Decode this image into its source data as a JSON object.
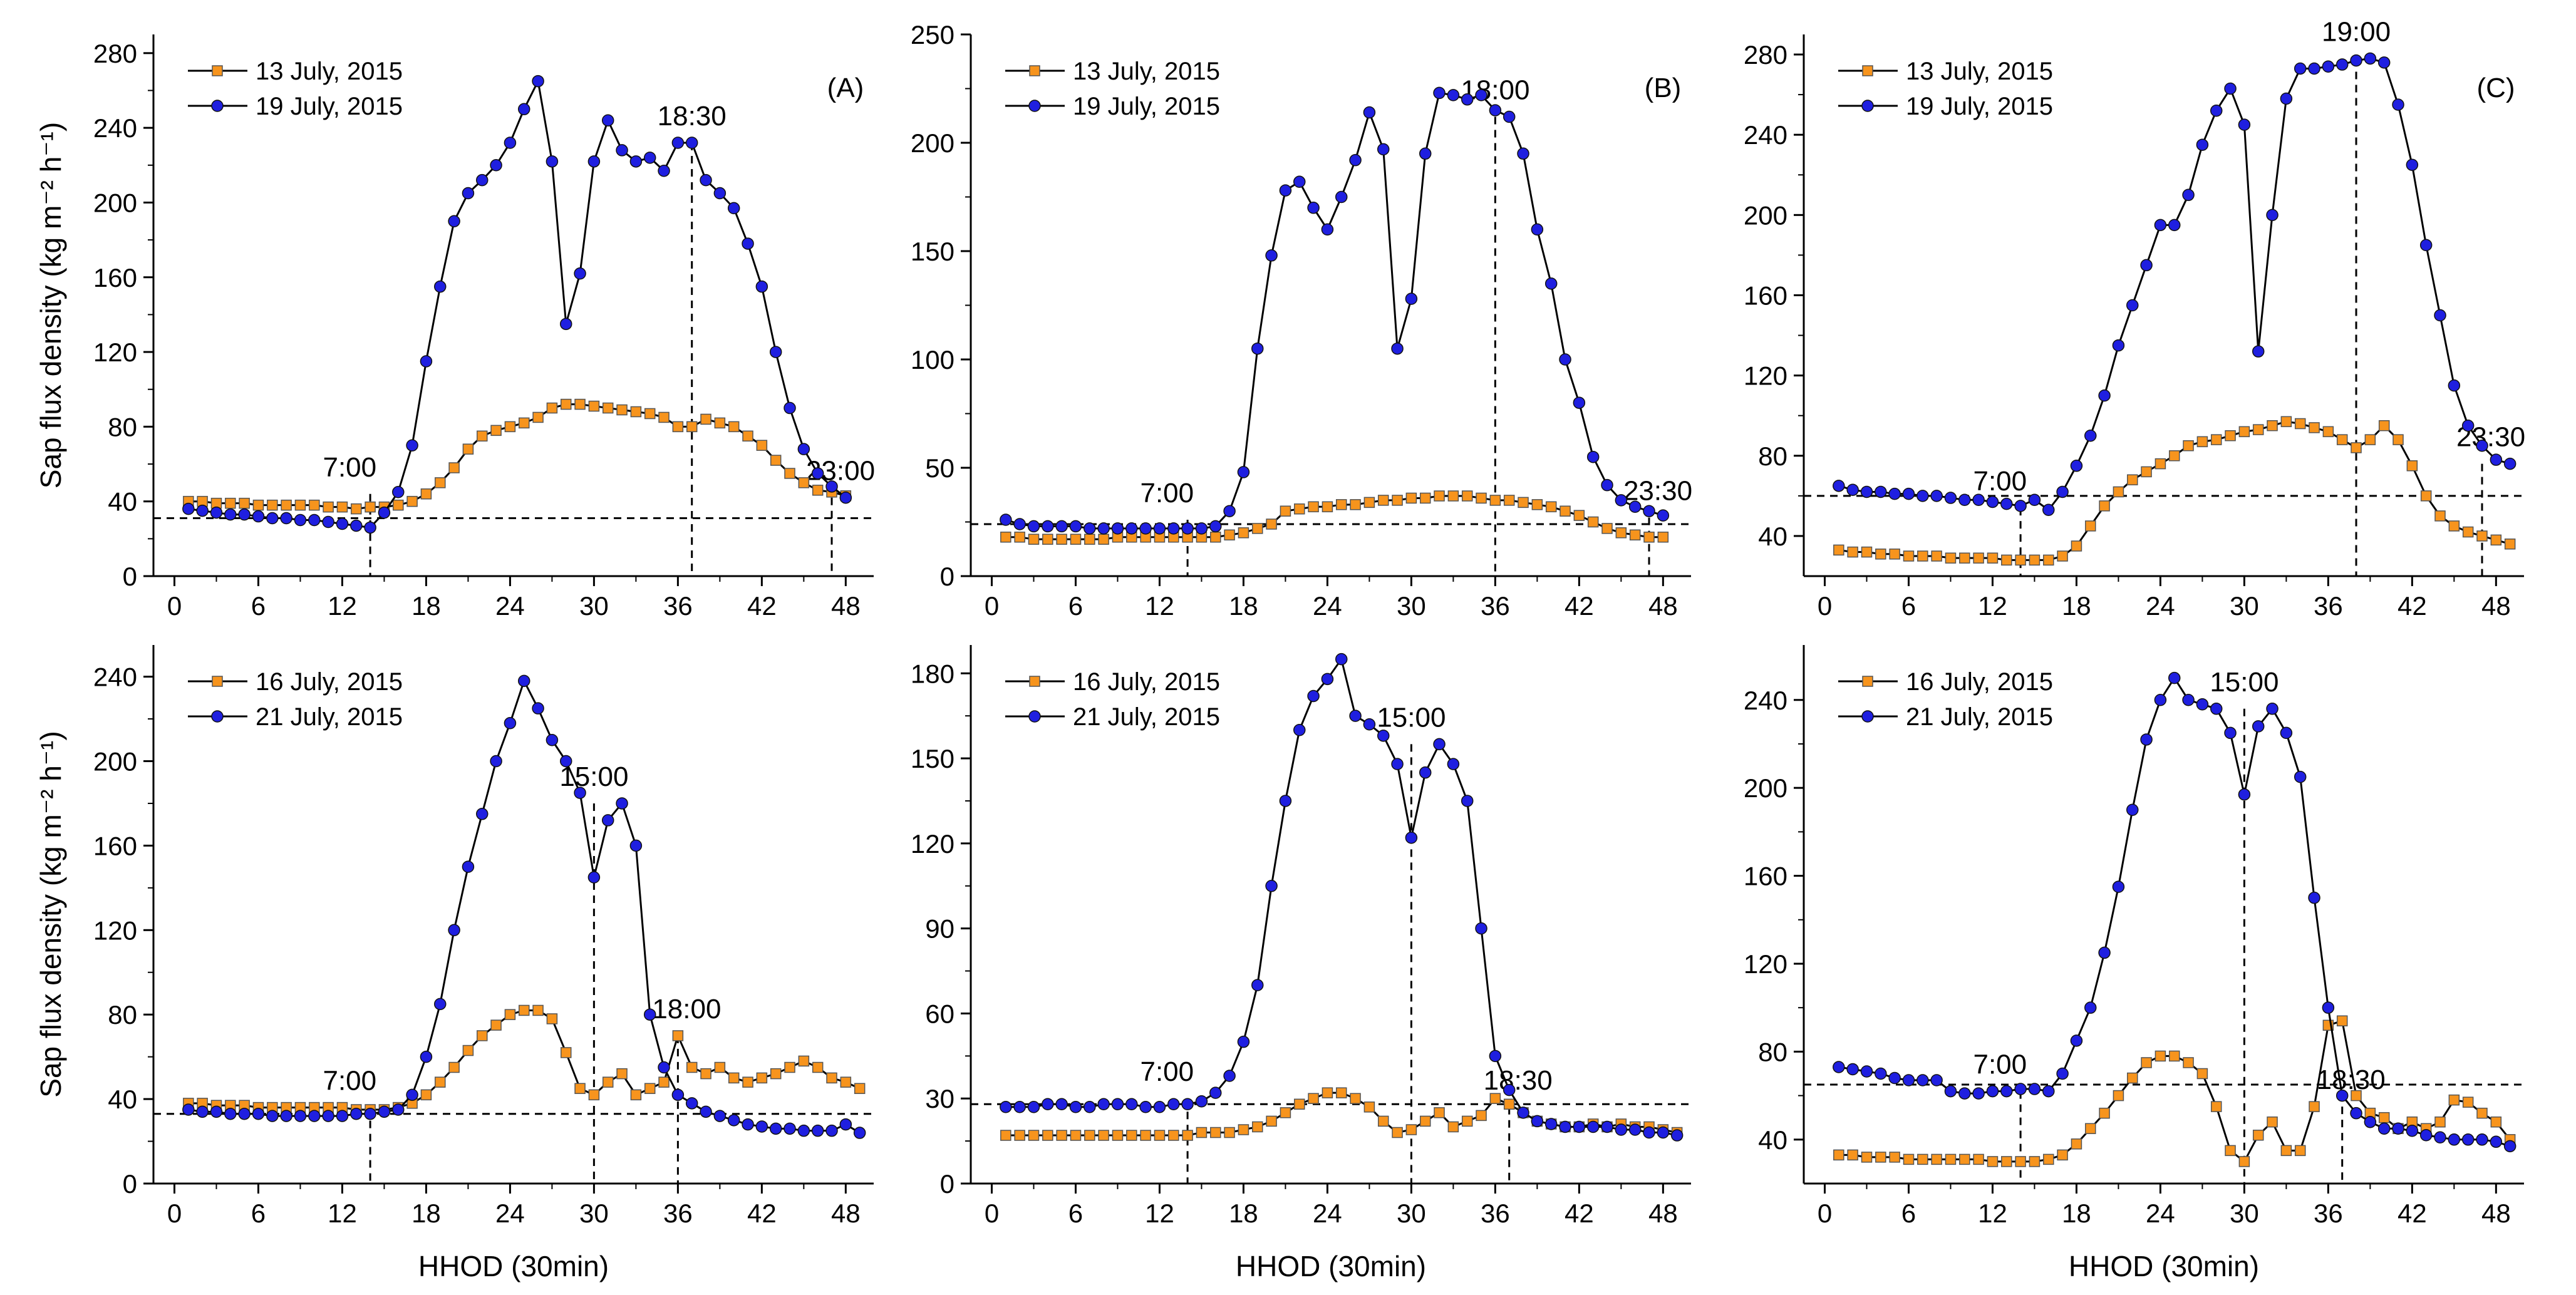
{
  "figure": {
    "ylabel": "Sap flux density (kg m⁻² h⁻¹)",
    "xlabel": "HHOD (30min)"
  },
  "colors": {
    "series1": "#f7941d",
    "series2": "#1f1fe0",
    "line": "#000000"
  },
  "chart_data": [
    {
      "type": "line",
      "panel": "A",
      "row": 0,
      "col": 0,
      "panel_label": "(A)",
      "xlim": [
        -1.5,
        50
      ],
      "ylim": [
        0,
        290
      ],
      "xticks": [
        0,
        6,
        12,
        18,
        24,
        30,
        36,
        42,
        48
      ],
      "yticks": [
        0,
        40,
        80,
        120,
        160,
        200,
        240,
        280
      ],
      "ylabel": "Sap flux density (kg m⁻² h⁻¹)",
      "xlabel": "",
      "hline": 31,
      "vlines": [
        {
          "x": 14,
          "top": 44,
          "label": "7:00"
        },
        {
          "x": 37,
          "top": 232,
          "label": "18:30"
        },
        {
          "x": 47,
          "top": 42,
          "label": "23:00"
        }
      ],
      "series": [
        {
          "name": "13 July, 2015",
          "marker": "square",
          "values": [
            40,
            40,
            39,
            39,
            39,
            38,
            38,
            38,
            38,
            38,
            37,
            37,
            36,
            37,
            37,
            38,
            40,
            44,
            50,
            58,
            68,
            75,
            78,
            80,
            82,
            85,
            90,
            92,
            92,
            91,
            90,
            89,
            88,
            87,
            85,
            80,
            80,
            84,
            82,
            80,
            75,
            70,
            62,
            55,
            50,
            46,
            45,
            43
          ]
        },
        {
          "name": "19 July, 2015",
          "marker": "circle",
          "values": [
            36,
            35,
            34,
            33,
            33,
            32,
            31,
            31,
            30,
            30,
            29,
            28,
            27,
            26,
            34,
            45,
            70,
            115,
            155,
            190,
            205,
            212,
            220,
            232,
            250,
            265,
            222,
            135,
            162,
            222,
            244,
            228,
            222,
            224,
            217,
            232,
            232,
            212,
            205,
            197,
            178,
            155,
            120,
            90,
            68,
            55,
            48,
            42
          ]
        }
      ]
    },
    {
      "type": "line",
      "panel": "B",
      "row": 0,
      "col": 1,
      "panel_label": "(B)",
      "xlim": [
        -1.5,
        50
      ],
      "ylim": [
        0,
        250
      ],
      "xticks": [
        0,
        6,
        12,
        18,
        24,
        30,
        36,
        42,
        48
      ],
      "yticks": [
        0,
        50,
        100,
        150,
        200,
        250
      ],
      "ylabel": "",
      "xlabel": "",
      "hline": 24,
      "vlines": [
        {
          "x": 14,
          "top": 26,
          "label": "7:00"
        },
        {
          "x": 36,
          "top": 212,
          "label": "18:00"
        },
        {
          "x": 47,
          "top": 27,
          "label": "23:30"
        }
      ],
      "series": [
        {
          "name": "13 July, 2015",
          "marker": "square",
          "values": [
            18,
            18,
            17,
            17,
            17,
            17,
            17,
            17,
            18,
            18,
            18,
            18,
            18,
            18,
            18,
            18,
            19,
            20,
            22,
            24,
            30,
            31,
            32,
            32,
            33,
            33,
            34,
            35,
            35,
            36,
            36,
            37,
            37,
            37,
            36,
            35,
            35,
            34,
            33,
            32,
            30,
            28,
            25,
            22,
            20,
            19,
            18,
            18
          ]
        },
        {
          "name": "19 July, 2015",
          "marker": "circle",
          "values": [
            26,
            24,
            23,
            23,
            23,
            23,
            22,
            22,
            22,
            22,
            22,
            22,
            22,
            22,
            22,
            23,
            30,
            48,
            105,
            148,
            178,
            182,
            170,
            160,
            175,
            192,
            214,
            197,
            105,
            128,
            195,
            223,
            222,
            220,
            222,
            215,
            212,
            195,
            160,
            135,
            100,
            80,
            55,
            42,
            35,
            32,
            30,
            28
          ]
        }
      ]
    },
    {
      "type": "line",
      "panel": "C",
      "row": 0,
      "col": 2,
      "panel_label": "(C)",
      "xlim": [
        -1.5,
        50
      ],
      "ylim": [
        20,
        290
      ],
      "xticks": [
        0,
        6,
        12,
        18,
        24,
        30,
        36,
        42,
        48
      ],
      "yticks": [
        40,
        80,
        120,
        160,
        200,
        240,
        280
      ],
      "ylabel": "",
      "xlabel": "",
      "hline": 60,
      "vlines": [
        {
          "x": 14,
          "top": 54,
          "label": "7:00"
        },
        {
          "x": 38,
          "top": 278,
          "label": "19:00"
        },
        {
          "x": 47,
          "top": 76,
          "label": "23:30"
        }
      ],
      "series": [
        {
          "name": "13 July, 2015",
          "marker": "square",
          "values": [
            33,
            32,
            32,
            31,
            31,
            30,
            30,
            30,
            29,
            29,
            29,
            29,
            28,
            28,
            28,
            28,
            30,
            35,
            45,
            55,
            62,
            68,
            72,
            76,
            80,
            85,
            87,
            88,
            90,
            92,
            93,
            95,
            97,
            96,
            94,
            92,
            88,
            84,
            88,
            95,
            88,
            75,
            60,
            50,
            45,
            42,
            40,
            38,
            36
          ]
        },
        {
          "name": "19 July, 2015",
          "marker": "circle",
          "values": [
            65,
            63,
            62,
            62,
            61,
            61,
            60,
            60,
            59,
            58,
            58,
            57,
            56,
            55,
            58,
            53,
            62,
            75,
            90,
            110,
            135,
            155,
            175,
            195,
            195,
            210,
            235,
            252,
            263,
            245,
            132,
            200,
            258,
            273,
            273,
            274,
            275,
            277,
            278,
            276,
            255,
            225,
            185,
            150,
            115,
            95,
            85,
            78,
            76
          ]
        }
      ]
    },
    {
      "type": "line",
      "panel": "D",
      "row": 1,
      "col": 0,
      "panel_label": "",
      "xlim": [
        -1.5,
        50
      ],
      "ylim": [
        0,
        255
      ],
      "xticks": [
        0,
        6,
        12,
        18,
        24,
        30,
        36,
        42,
        48
      ],
      "yticks": [
        0,
        40,
        80,
        120,
        160,
        200,
        240
      ],
      "ylabel": "Sap flux density (kg m⁻² h⁻¹)",
      "xlabel": "HHOD (30min)",
      "hline": 33,
      "vlines": [
        {
          "x": 14,
          "top": 36,
          "label": "7:00"
        },
        {
          "x": 30,
          "top": 180,
          "label": "15:00"
        },
        {
          "x": 36,
          "top": 70,
          "label": "18:00"
        }
      ],
      "series": [
        {
          "name": "16 July, 2015",
          "marker": "square",
          "values": [
            38,
            38,
            37,
            37,
            37,
            36,
            36,
            36,
            36,
            36,
            36,
            36,
            35,
            35,
            35,
            36,
            38,
            42,
            48,
            55,
            63,
            70,
            75,
            80,
            82,
            82,
            78,
            62,
            45,
            42,
            48,
            52,
            42,
            45,
            48,
            70,
            55,
            52,
            55,
            50,
            48,
            50,
            52,
            55,
            58,
            55,
            50,
            48,
            45
          ]
        },
        {
          "name": "21 July, 2015",
          "marker": "circle",
          "values": [
            35,
            34,
            34,
            33,
            33,
            33,
            32,
            32,
            32,
            32,
            32,
            32,
            33,
            33,
            34,
            35,
            42,
            60,
            85,
            120,
            150,
            175,
            200,
            218,
            238,
            225,
            210,
            200,
            185,
            145,
            172,
            180,
            160,
            80,
            55,
            42,
            38,
            34,
            32,
            30,
            28,
            27,
            26,
            26,
            25,
            25,
            25,
            28,
            24
          ]
        }
      ]
    },
    {
      "type": "line",
      "panel": "E",
      "row": 1,
      "col": 1,
      "panel_label": "",
      "xlim": [
        -1.5,
        50
      ],
      "ylim": [
        0,
        190
      ],
      "xticks": [
        0,
        6,
        12,
        18,
        24,
        30,
        36,
        42,
        48
      ],
      "yticks": [
        0,
        30,
        60,
        90,
        120,
        150,
        180
      ],
      "ylabel": "",
      "xlabel": "HHOD (30min)",
      "hline": 28,
      "vlines": [
        {
          "x": 14,
          "top": 30,
          "label": "7:00"
        },
        {
          "x": 30,
          "top": 155,
          "label": "15:00"
        },
        {
          "x": 37,
          "top": 27,
          "label": "18:30"
        }
      ],
      "series": [
        {
          "name": "16 July, 2015",
          "marker": "square",
          "values": [
            17,
            17,
            17,
            17,
            17,
            17,
            17,
            17,
            17,
            17,
            17,
            17,
            17,
            17,
            18,
            18,
            18,
            19,
            20,
            22,
            25,
            28,
            30,
            32,
            32,
            30,
            27,
            22,
            18,
            19,
            22,
            25,
            20,
            22,
            24,
            30,
            28,
            25,
            22,
            21,
            20,
            20,
            21,
            20,
            21,
            20,
            20,
            19,
            18
          ]
        },
        {
          "name": "21 July, 2015",
          "marker": "circle",
          "values": [
            27,
            27,
            27,
            28,
            28,
            27,
            27,
            28,
            28,
            28,
            27,
            27,
            28,
            28,
            29,
            32,
            38,
            50,
            70,
            105,
            135,
            160,
            172,
            178,
            185,
            165,
            162,
            158,
            148,
            122,
            145,
            155,
            148,
            135,
            90,
            45,
            33,
            25,
            22,
            21,
            20,
            20,
            20,
            20,
            19,
            19,
            18,
            18,
            17
          ]
        }
      ]
    },
    {
      "type": "line",
      "panel": "F",
      "row": 1,
      "col": 2,
      "panel_label": "",
      "xlim": [
        -1.5,
        50
      ],
      "ylim": [
        20,
        265
      ],
      "xticks": [
        0,
        6,
        12,
        18,
        24,
        30,
        36,
        42,
        48
      ],
      "yticks": [
        40,
        80,
        120,
        160,
        200,
        240
      ],
      "ylabel": "",
      "xlabel": "HHOD (30min)",
      "hline": 65,
      "vlines": [
        {
          "x": 14,
          "top": 62,
          "label": "7:00"
        },
        {
          "x": 30,
          "top": 236,
          "label": "15:00"
        },
        {
          "x": 37,
          "top": 55,
          "label": "18:30"
        }
      ],
      "series": [
        {
          "name": "16 July, 2015",
          "marker": "square",
          "values": [
            33,
            33,
            32,
            32,
            32,
            31,
            31,
            31,
            31,
            31,
            31,
            30,
            30,
            30,
            30,
            31,
            33,
            38,
            45,
            52,
            60,
            68,
            75,
            78,
            78,
            75,
            70,
            55,
            35,
            30,
            42,
            48,
            35,
            35,
            55,
            92,
            94,
            60,
            52,
            50,
            45,
            48,
            45,
            48,
            58,
            57,
            52,
            48,
            40
          ]
        },
        {
          "name": "21 July, 2015",
          "marker": "circle",
          "values": [
            73,
            72,
            71,
            70,
            68,
            67,
            67,
            67,
            62,
            61,
            61,
            62,
            62,
            63,
            63,
            62,
            70,
            85,
            100,
            125,
            155,
            190,
            222,
            240,
            250,
            240,
            238,
            236,
            225,
            197,
            228,
            236,
            225,
            205,
            150,
            100,
            60,
            52,
            48,
            45,
            45,
            44,
            42,
            41,
            40,
            40,
            40,
            39,
            37
          ]
        }
      ]
    }
  ]
}
